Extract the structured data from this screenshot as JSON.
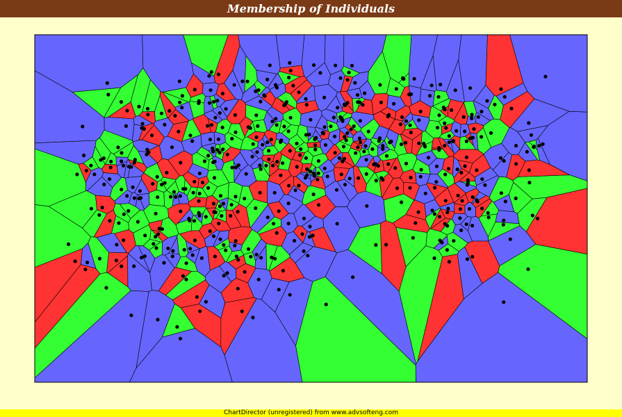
{
  "chart_data": {
    "type": "voronoi-scatter",
    "title": "Membership of Individuals",
    "xlabel": "",
    "ylabel": "",
    "axes_visible": false,
    "grid": false,
    "membership_colors": [
      "#6666ff",
      "#33ff33",
      "#ff3333"
    ],
    "background": "#ffffcc",
    "title_background": "#7a3a15",
    "point_color": "#000000",
    "cell_border_color": "#000000",
    "num_points": 520,
    "random_seed": 7
  },
  "footer": {
    "text": "ChartDirector (unregistered) from www.advsofteng.com"
  }
}
